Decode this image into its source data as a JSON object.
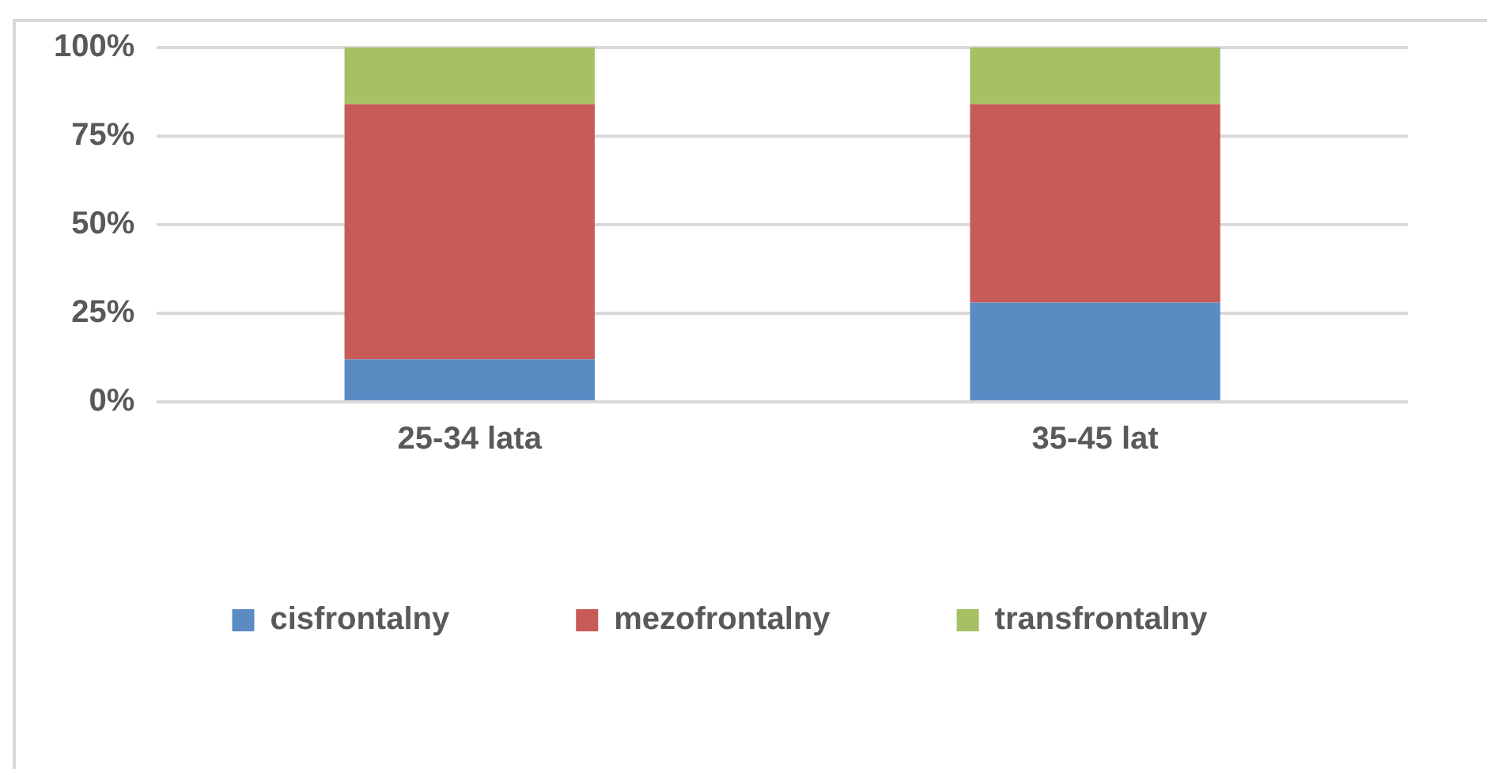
{
  "chart_data": {
    "type": "bar",
    "stacked": true,
    "categories": [
      "25-34 lata",
      "35-45 lat"
    ],
    "series": [
      {
        "name": "cisfrontalny",
        "color": "#5b8bc3",
        "values": [
          12,
          28
        ]
      },
      {
        "name": "mezofrontalny",
        "color": "#c75b58",
        "values": [
          72,
          56
        ]
      },
      {
        "name": "transfrontalny",
        "color": "#a5c164",
        "values": [
          16,
          16
        ]
      }
    ],
    "ylim": [
      0,
      100
    ],
    "yticks": [
      {
        "value": 0,
        "label": "0%"
      },
      {
        "value": 25,
        "label": "25%"
      },
      {
        "value": 50,
        "label": "50%"
      },
      {
        "value": 75,
        "label": "75%"
      },
      {
        "value": 100,
        "label": "100%"
      }
    ],
    "grid": "y",
    "legend": "bottom"
  }
}
